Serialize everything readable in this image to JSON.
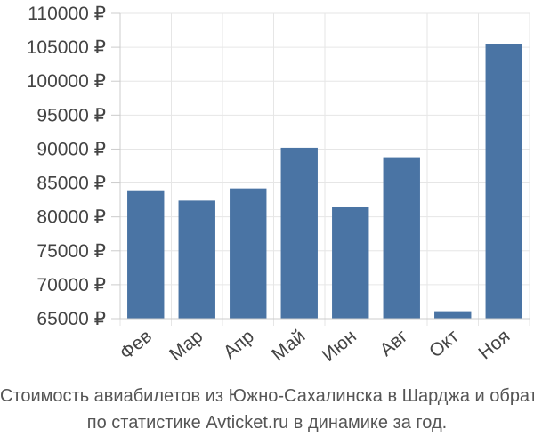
{
  "chart_data": {
    "type": "bar",
    "categories": [
      "Фев",
      "Мар",
      "Апр",
      "Май",
      "Июн",
      "Авг",
      "Окт",
      "Ноя"
    ],
    "values": [
      83800,
      82400,
      84200,
      90200,
      81400,
      88800,
      66100,
      105500
    ],
    "ylim": [
      65000,
      110000
    ],
    "yticks": [
      65000,
      70000,
      75000,
      80000,
      85000,
      90000,
      95000,
      100000,
      105000,
      110000
    ],
    "currency_symbol": "₽",
    "grid": true,
    "bar_color": "#4a74a4",
    "grid_color": "#e6e6e6"
  },
  "caption": {
    "line1": "Стоимость авиабилетов из Южно-Сахалинска в Шарджа и обратно",
    "line2": "по статистике Avticket.ru в динамике за год."
  }
}
